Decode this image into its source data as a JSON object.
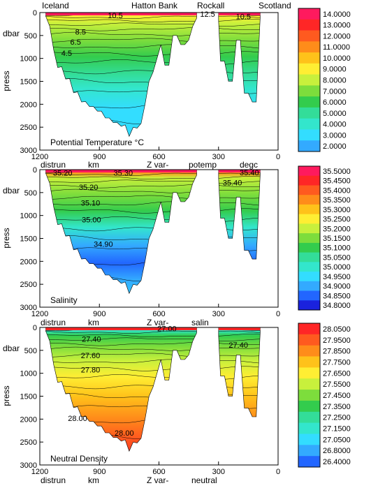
{
  "header_labels": [
    "Iceland",
    "Hatton Bank",
    "Rockall",
    "Scotland"
  ],
  "chart_data": [
    {
      "type": "heatmap",
      "title": "Potential Temperature °C",
      "ylabel": "press",
      "yunit": "dbar",
      "xlabel": "km",
      "xname": "distrun",
      "zlabel": "Z var-",
      "varname": "potemp",
      "varunit": "degc",
      "xlim": [
        1200,
        0
      ],
      "ylim": [
        0,
        3000
      ],
      "x_ticks": [
        "1200",
        "900",
        "600",
        "300",
        "0"
      ],
      "y_ticks": [
        "0",
        "500",
        "1000",
        "1500",
        "2000",
        "2500",
        "3000"
      ],
      "colorbar_ticks": [
        "14.0000",
        "13.0000",
        "12.0000",
        "11.0000",
        "10.0000",
        "9.0000",
        "8.0000",
        "7.0000",
        "6.0000",
        "5.0000",
        "4.0000",
        "3.0000",
        "2.0000"
      ],
      "colorbar_colors": [
        "#ff1a5e",
        "#ff2626",
        "#ff5a1f",
        "#ff8c1a",
        "#ffc21a",
        "#ffee33",
        "#c8f03c",
        "#7ddd3c",
        "#33cc4d",
        "#33dd99",
        "#33e6cc",
        "#33ddff",
        "#33aaff"
      ],
      "contour_labels": [
        {
          "label": "10.5",
          "x": 820,
          "p": 60
        },
        {
          "label": "12.5",
          "x": 355,
          "p": 30
        },
        {
          "label": "10.5",
          "x": 175,
          "p": 80
        },
        {
          "label": "8.5",
          "x": 995,
          "p": 420
        },
        {
          "label": "6.5",
          "x": 1020,
          "p": 640
        },
        {
          "label": "4.5",
          "x": 1065,
          "p": 880
        }
      ],
      "sections": [
        {
          "x": [
            1170,
            1150,
            1130,
            1110,
            1090,
            1070,
            1050,
            1030,
            1010,
            990,
            970,
            950,
            930,
            910,
            890,
            870,
            850,
            830,
            810,
            790,
            770,
            750,
            730,
            710,
            690,
            670,
            650,
            630,
            610,
            590,
            570,
            550,
            530,
            510,
            490,
            470,
            450,
            430,
            410
          ],
          "depth": [
            80,
            300,
            820,
            1200,
            1180,
            1450,
            1440,
            1750,
            1730,
            1950,
            1940,
            2050,
            2050,
            2150,
            2150,
            2300,
            2300,
            2400,
            2400,
            2480,
            2450,
            2700,
            2500,
            2520,
            2420,
            2000,
            1500,
            1300,
            1000,
            700,
            1150,
            1150,
            500,
            500,
            700,
            700,
            600,
            300,
            120
          ]
        },
        {
          "x": [
            300,
            290,
            270,
            250,
            230,
            210,
            190,
            170,
            150,
            130,
            110,
            90
          ],
          "depth": [
            180,
            1060,
            1060,
            1500,
            1500,
            600,
            600,
            1760,
            1760,
            1950,
            1950,
            100
          ]
        }
      ]
    },
    {
      "type": "heatmap",
      "title": "Salinity",
      "ylabel": "press",
      "yunit": "dbar",
      "xlabel": "km",
      "xname": "distrun",
      "zlabel": "Z var-",
      "varname": "salin",
      "xlim": [
        1200,
        0
      ],
      "ylim": [
        0,
        3000
      ],
      "x_ticks": [
        "1200",
        "900",
        "600",
        "300",
        "0"
      ],
      "y_ticks": [
        "0",
        "500",
        "1000",
        "1500",
        "2000",
        "2500",
        "3000"
      ],
      "colorbar_ticks": [
        "35.5000",
        "35.4500",
        "35.4000",
        "35.3500",
        "35.3000",
        "35.2500",
        "35.2000",
        "35.1500",
        "35.1000",
        "35.0500",
        "35.0000",
        "34.9500",
        "34.9000",
        "34.8500",
        "34.8000"
      ],
      "colorbar_colors": [
        "#ff1a5e",
        "#ff2626",
        "#ff5a1f",
        "#ff8c1a",
        "#ffc21a",
        "#ffee33",
        "#c8f03c",
        "#7ddd3c",
        "#33cc4d",
        "#33dd99",
        "#33e6cc",
        "#33ddff",
        "#33aaff",
        "#2266ff",
        "#1a22dd"
      ],
      "contour_labels": [
        {
          "label": "35.20",
          "x": 1085,
          "p": 70
        },
        {
          "label": "35.30",
          "x": 780,
          "p": 70
        },
        {
          "label": "35.40",
          "x": 145,
          "p": 60
        },
        {
          "label": "35.40",
          "x": 230,
          "p": 280
        },
        {
          "label": "35.20",
          "x": 955,
          "p": 380
        },
        {
          "label": "35.10",
          "x": 945,
          "p": 720
        },
        {
          "label": "35.00",
          "x": 940,
          "p": 1090
        },
        {
          "label": "34.90",
          "x": 880,
          "p": 1620
        }
      ],
      "sections": [
        {
          "x": [
            1170,
            1150,
            1130,
            1110,
            1090,
            1070,
            1050,
            1030,
            1010,
            990,
            970,
            950,
            930,
            910,
            890,
            870,
            850,
            830,
            810,
            790,
            770,
            750,
            730,
            710,
            690,
            670,
            650,
            630,
            610,
            590,
            570,
            550,
            530,
            510,
            490,
            470,
            450,
            430,
            410
          ],
          "depth": [
            80,
            300,
            820,
            1200,
            1180,
            1450,
            1440,
            1750,
            1730,
            1950,
            1940,
            2050,
            2050,
            2150,
            2150,
            2300,
            2300,
            2400,
            2400,
            2480,
            2450,
            2700,
            2500,
            2520,
            2420,
            2000,
            1500,
            1300,
            1000,
            700,
            1150,
            1150,
            500,
            500,
            700,
            700,
            600,
            300,
            120
          ]
        },
        {
          "x": [
            300,
            290,
            270,
            250,
            230,
            210,
            190,
            170,
            150,
            130,
            110,
            90
          ],
          "depth": [
            180,
            1060,
            1060,
            1500,
            1500,
            600,
            600,
            1760,
            1760,
            1950,
            1950,
            100
          ]
        }
      ]
    },
    {
      "type": "heatmap",
      "title": "Neutral Density",
      "ylabel": "press",
      "yunit": "dbar",
      "xlabel": "km",
      "xname": "distrun",
      "zlabel": "Z var-",
      "varname": "neutral",
      "xlim": [
        1200,
        0
      ],
      "ylim": [
        0,
        3000
      ],
      "x_ticks": [
        "1200",
        "900",
        "600",
        "300",
        "0"
      ],
      "y_ticks": [
        "0",
        "500",
        "1000",
        "1500",
        "2000",
        "2500",
        "3000"
      ],
      "colorbar_ticks": [
        "28.0500",
        "27.9500",
        "27.8500",
        "27.7500",
        "27.6500",
        "27.5500",
        "27.4500",
        "27.3500",
        "27.2500",
        "27.1500",
        "27.0500",
        "26.8000",
        "26.4000"
      ],
      "colorbar_colors": [
        "#ff2626",
        "#ff5a1f",
        "#ff8c1a",
        "#ffc21a",
        "#ffee33",
        "#c8f03c",
        "#7ddd3c",
        "#33cc4d",
        "#33dd99",
        "#33e6cc",
        "#33ddff",
        "#33aaff",
        "#2266ff"
      ],
      "contour_labels": [
        {
          "label": "27.00",
          "x": 560,
          "p": 20
        },
        {
          "label": "27.40",
          "x": 940,
          "p": 250
        },
        {
          "label": "27.40",
          "x": 200,
          "p": 380
        },
        {
          "label": "27.60",
          "x": 945,
          "p": 610
        },
        {
          "label": "27.80",
          "x": 945,
          "p": 920
        },
        {
          "label": "28.00",
          "x": 1010,
          "p": 1980
        },
        {
          "label": "28.00",
          "x": 775,
          "p": 2300
        }
      ],
      "sections": [
        {
          "x": [
            1170,
            1150,
            1130,
            1110,
            1090,
            1070,
            1050,
            1030,
            1010,
            990,
            970,
            950,
            930,
            910,
            890,
            870,
            850,
            830,
            810,
            790,
            770,
            750,
            730,
            710,
            690,
            670,
            650,
            630,
            610,
            590,
            570,
            550,
            530,
            510,
            490,
            470,
            450,
            430,
            410
          ],
          "depth": [
            80,
            300,
            820,
            1200,
            1180,
            1450,
            1440,
            1750,
            1730,
            1950,
            1940,
            2050,
            2050,
            2150,
            2150,
            2300,
            2300,
            2400,
            2400,
            2480,
            2450,
            2700,
            2500,
            2520,
            2420,
            2000,
            1500,
            1300,
            1000,
            700,
            1150,
            1150,
            500,
            500,
            700,
            700,
            600,
            300,
            120
          ]
        },
        {
          "x": [
            300,
            290,
            270,
            250,
            230,
            210,
            190,
            170,
            150,
            130,
            110,
            90
          ],
          "depth": [
            180,
            1060,
            1060,
            1500,
            1500,
            600,
            600,
            1760,
            1760,
            1950,
            1950,
            100
          ]
        }
      ]
    }
  ]
}
